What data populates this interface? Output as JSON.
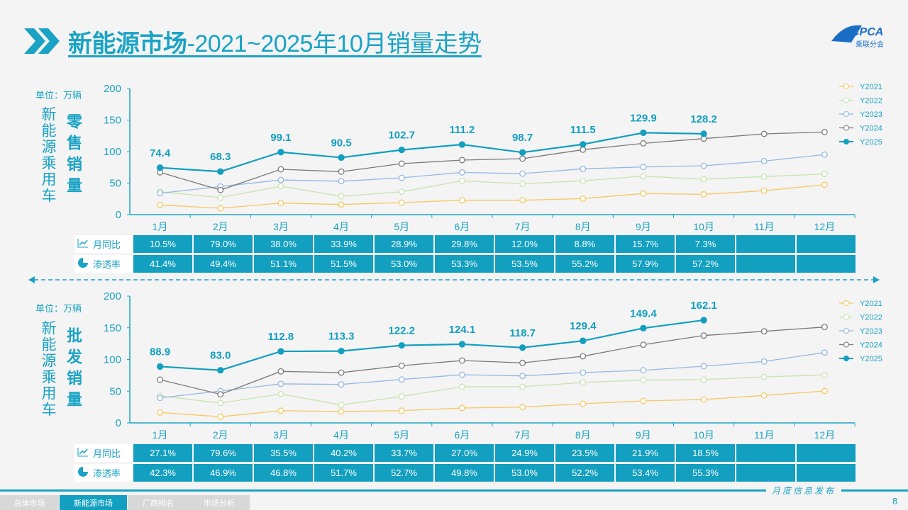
{
  "title": {
    "main": "新能源市场",
    "rest": "-2021~2025年10月销量走势"
  },
  "logo": {
    "text": "CPCA",
    "sub": "乘联分会"
  },
  "colors": {
    "accent": "#1aa3c4",
    "Y2021": "#f5c860",
    "Y2022": "#c8e3b0",
    "Y2023": "#93b8e3",
    "Y2024": "#7a7a7a",
    "Y2025": "#139fbf"
  },
  "footer": {
    "tabs": [
      "总体市场",
      "新能源市场",
      "厂商排名",
      "市场分析"
    ],
    "active": "新能源市场",
    "publish": "月度信息发布",
    "page": "8"
  },
  "row_labels": {
    "yoy": "月同比",
    "pen": "渗透率"
  },
  "chart_data": [
    {
      "type": "line",
      "unit": "单位：万辆",
      "side_label": "新能源乘用车",
      "title": "零售销量",
      "ylim": [
        0,
        200
      ],
      "yticks": [
        0,
        50,
        100,
        150,
        200
      ],
      "categories": [
        "1月",
        "2月",
        "3月",
        "4月",
        "5月",
        "6月",
        "7月",
        "8月",
        "9月",
        "10月",
        "11月",
        "12月"
      ],
      "series": [
        {
          "name": "Y2021",
          "values": [
            15.4,
            10.1,
            18.3,
            16.1,
            19.1,
            22.8,
            22.8,
            25.5,
            33.4,
            32.2,
            37.9,
            47.5
          ]
        },
        {
          "name": "Y2022",
          "values": [
            36.3,
            27.0,
            45.0,
            29.2,
            36.3,
            53.6,
            49.0,
            53.6,
            61.0,
            56.2,
            60.3,
            64.4
          ]
        },
        {
          "name": "Y2023",
          "values": [
            34.0,
            44.6,
            55.0,
            53.0,
            58.4,
            67.0,
            65.0,
            72.7,
            75.6,
            77.5,
            85.0,
            95.2
          ]
        },
        {
          "name": "Y2024",
          "values": [
            67.1,
            39.0,
            71.9,
            68.2,
            80.9,
            86.5,
            88.8,
            103.0,
            113.1,
            120.6,
            128.1,
            131.0
          ]
        },
        {
          "name": "Y2025",
          "values": [
            74.4,
            68.3,
            99.1,
            90.5,
            102.7,
            111.2,
            98.7,
            111.5,
            129.9,
            128.2
          ]
        }
      ],
      "labels": [
        "74.4",
        "68.3",
        "99.1",
        "90.5",
        "102.7",
        "111.2",
        "98.7",
        "111.5",
        "129.9",
        "128.2"
      ],
      "yoy": [
        "10.5%",
        "79.0%",
        "38.0%",
        "33.9%",
        "28.9%",
        "29.8%",
        "12.0%",
        "8.8%",
        "15.7%",
        "7.3%",
        "",
        ""
      ],
      "pen": [
        "41.4%",
        "49.4%",
        "51.1%",
        "51.5%",
        "53.0%",
        "53.3%",
        "53.5%",
        "55.2%",
        "57.9%",
        "57.2%",
        "",
        ""
      ]
    },
    {
      "type": "line",
      "unit": "单位：万辆",
      "side_label": "新能源乘用车",
      "title": "批发销量",
      "ylim": [
        0,
        200
      ],
      "yticks": [
        0,
        50,
        100,
        150,
        200
      ],
      "categories": [
        "1月",
        "2月",
        "3月",
        "4月",
        "5月",
        "6月",
        "7月",
        "8月",
        "9月",
        "10月",
        "11月",
        "12月"
      ],
      "series": [
        {
          "name": "Y2021",
          "values": [
            16.4,
            9.7,
            19.3,
            17.9,
            19.3,
            23.5,
            24.9,
            30.2,
            34.6,
            36.9,
            43.2,
            50.3
          ]
        },
        {
          "name": "Y2022",
          "values": [
            42.5,
            31.3,
            45.5,
            28.3,
            41.7,
            57.0,
            57.0,
            63.7,
            67.4,
            68.2,
            72.6,
            75.6
          ]
        },
        {
          "name": "Y2023",
          "values": [
            39.4,
            50.3,
            61.5,
            60.7,
            68.5,
            76.0,
            74.1,
            79.3,
            83.0,
            89.4,
            96.9,
            111.0
          ]
        },
        {
          "name": "Y2024",
          "values": [
            68.2,
            45.0,
            81.2,
            79.3,
            90.2,
            98.3,
            94.7,
            105.1,
            123.3,
            137.8,
            144.5,
            151.2
          ]
        },
        {
          "name": "Y2025",
          "values": [
            88.9,
            83.0,
            112.8,
            113.3,
            122.2,
            124.1,
            118.7,
            129.4,
            149.4,
            162.1
          ]
        }
      ],
      "labels": [
        "88.9",
        "83.0",
        "112.8",
        "113.3",
        "122.2",
        "124.1",
        "118.7",
        "129.4",
        "149.4",
        "162.1"
      ],
      "yoy": [
        "27.1%",
        "79.6%",
        "35.5%",
        "40.2%",
        "33.7%",
        "27.0%",
        "24.9%",
        "23.5%",
        "21.9%",
        "18.5%",
        "",
        ""
      ],
      "pen": [
        "42.3%",
        "46.9%",
        "46.8%",
        "51.7%",
        "52.7%",
        "49.8%",
        "53.0%",
        "52.2%",
        "53.4%",
        "55.3%",
        "",
        ""
      ]
    }
  ]
}
